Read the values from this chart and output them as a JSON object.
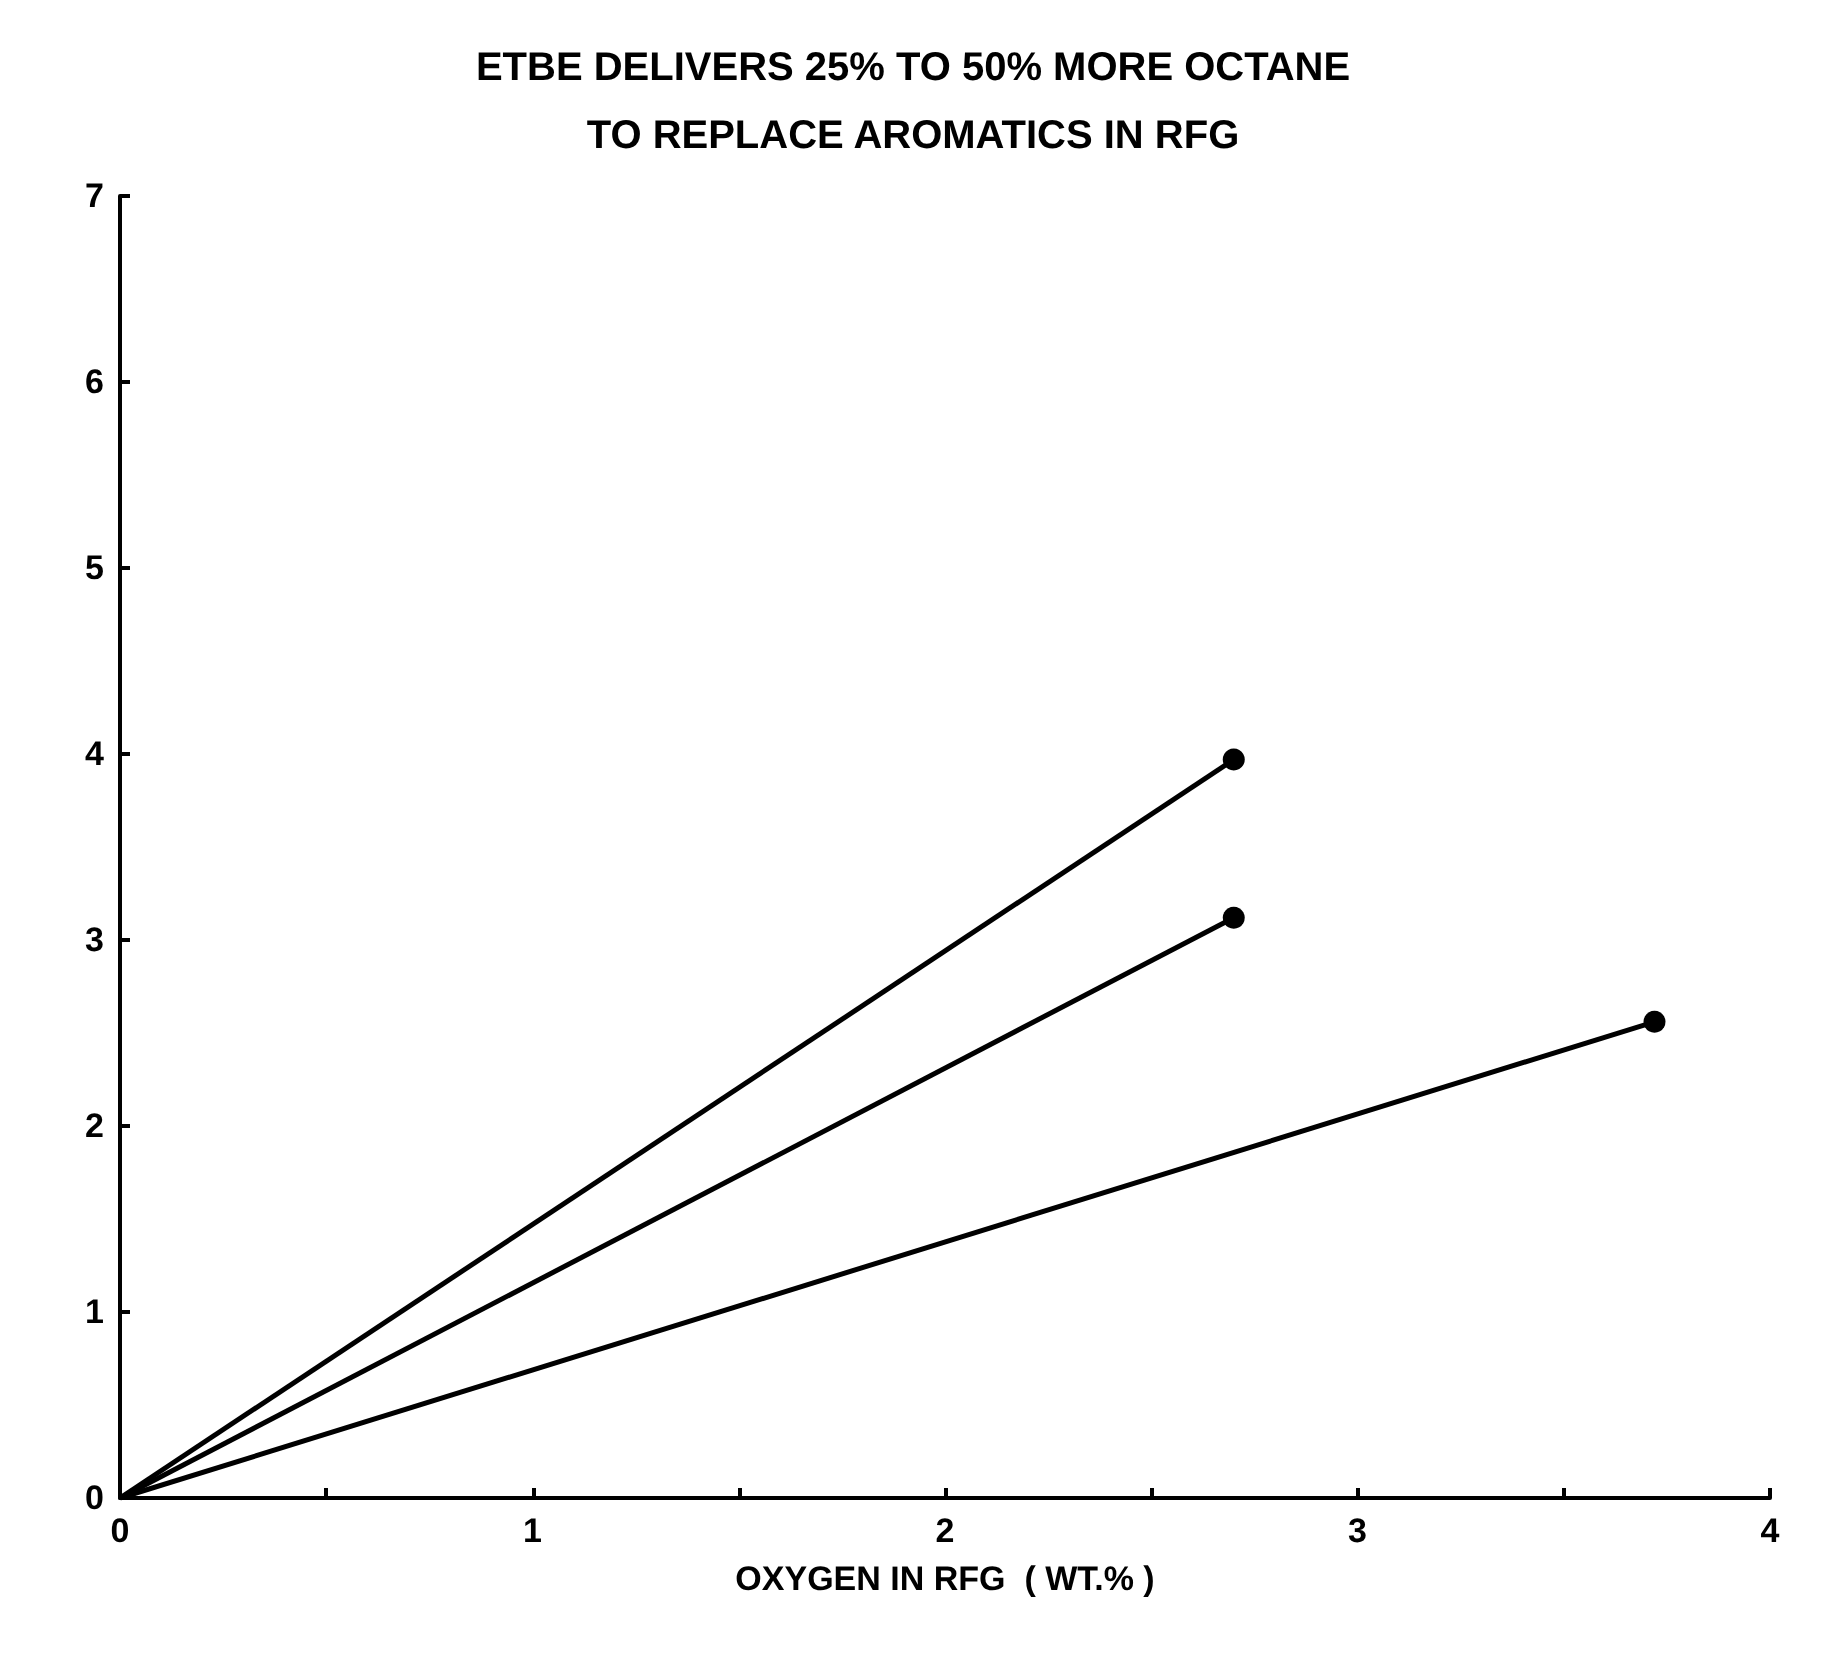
{
  "chart_data": {
    "type": "line",
    "title": "ETBE DELIVERS 25% TO 50% MORE OCTANE\nTO REPLACE AROMATICS IN RFG",
    "xlabel": "OXYGEN IN RFG  ( WT.% )",
    "series": [
      {
        "x": [
          0,
          2.7
        ],
        "values": [
          0,
          3.97
        ],
        "color": "#000000"
      },
      {
        "x": [
          0,
          2.7
        ],
        "values": [
          0,
          3.12
        ],
        "color": "#000000"
      },
      {
        "x": [
          0,
          3.72
        ],
        "values": [
          0,
          2.56
        ],
        "color": "#000000"
      }
    ],
    "xlim": [
      0,
      4
    ],
    "xticks": [
      0,
      {
        "value": 0.5,
        "label": null
      },
      1,
      {
        "value": 1.5,
        "label": null
      },
      2,
      {
        "value": 2.5,
        "label": null
      },
      3,
      {
        "value": 3.5,
        "label": null
      },
      4
    ],
    "ylim": [
      0,
      7
    ],
    "yticks": [
      0,
      1,
      2,
      3,
      4,
      5,
      6,
      7
    ],
    "grid": false,
    "marker": "circle",
    "line_style": "solid"
  }
}
